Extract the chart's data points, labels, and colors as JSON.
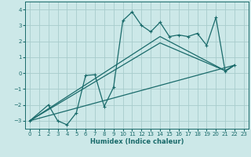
{
  "xlabel": "Humidex (Indice chaleur)",
  "bg_color": "#cce8e8",
  "grid_color": "#a8cccc",
  "line_color": "#1a6b6b",
  "xlim": [
    -0.5,
    23.5
  ],
  "ylim": [
    -3.5,
    4.5
  ],
  "xticks": [
    0,
    1,
    2,
    3,
    4,
    5,
    6,
    7,
    8,
    9,
    10,
    11,
    12,
    13,
    14,
    15,
    16,
    17,
    18,
    19,
    20,
    21,
    22,
    23
  ],
  "yticks": [
    -3,
    -2,
    -1,
    0,
    1,
    2,
    3,
    4
  ],
  "line1_x": [
    0,
    2,
    3,
    4,
    5,
    6,
    7,
    8,
    9,
    10,
    11,
    12,
    13,
    14,
    15,
    16,
    17,
    18,
    19,
    20,
    21,
    22
  ],
  "line1_y": [
    -3,
    -2,
    -3,
    -3.25,
    -2.5,
    -0.15,
    -0.1,
    -2.1,
    -0.9,
    3.3,
    3.85,
    3.0,
    2.6,
    3.2,
    2.3,
    2.4,
    2.3,
    2.5,
    1.75,
    3.5,
    0.1,
    0.5
  ],
  "line2_x": [
    0,
    22
  ],
  "line2_y": [
    -3.0,
    0.5
  ],
  "line3_x": [
    0,
    14,
    21,
    22
  ],
  "line3_y": [
    -3.0,
    1.9,
    0.15,
    0.5
  ],
  "line4_x": [
    0,
    14,
    21,
    22
  ],
  "line4_y": [
    -3.0,
    2.3,
    0.15,
    0.5
  ]
}
